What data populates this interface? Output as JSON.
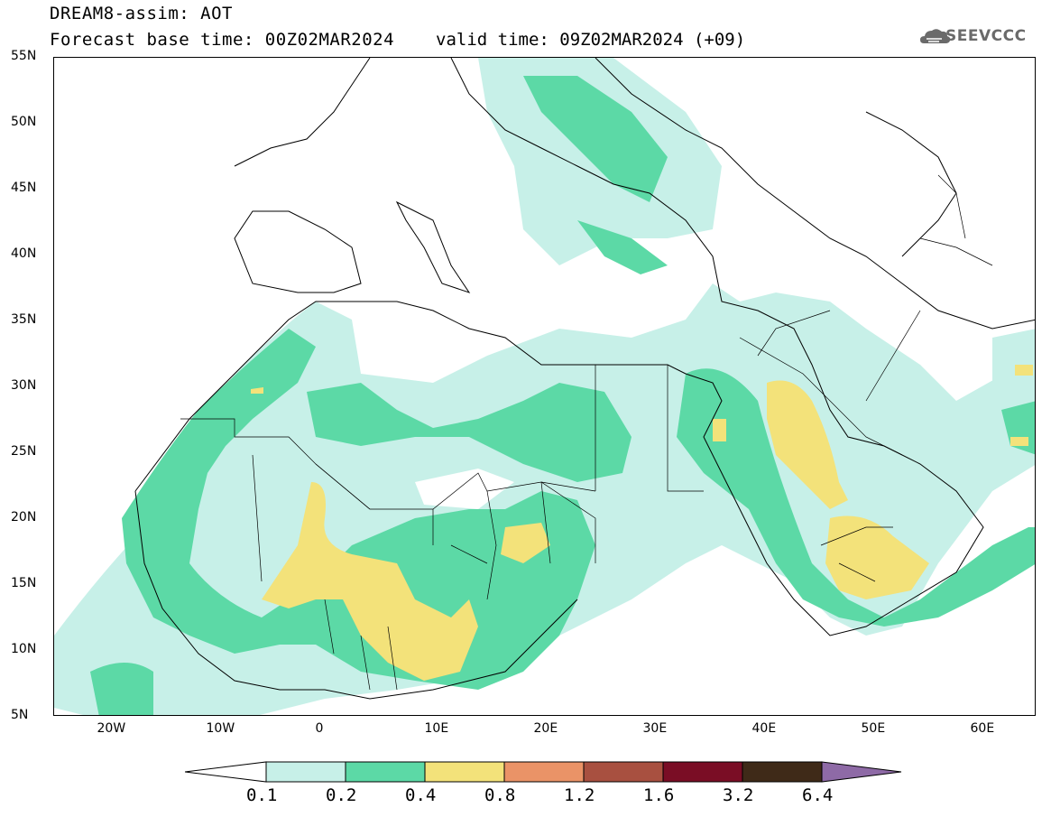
{
  "header": {
    "line1": "DREAM8-assim: AOT",
    "line2": "Forecast base time: 00Z02MAR2024",
    "valid": "valid time: 09Z02MAR2024 (+09)"
  },
  "logo": {
    "text": "SEEVCCC",
    "icon": "cloud-icon",
    "color": "#6a6a6a"
  },
  "map": {
    "extent": {
      "lon": [
        -25,
        65
      ],
      "lat": [
        5,
        55
      ]
    },
    "lat_ticks": [
      "55N",
      "50N",
      "45N",
      "40N",
      "35N",
      "30N",
      "25N",
      "20N",
      "15N",
      "10N",
      "5N"
    ],
    "lon_ticks": [
      "20W",
      "10W",
      "0",
      "10E",
      "20E",
      "30E",
      "40E",
      "50E",
      "60E"
    ]
  },
  "legend": {
    "levels": [
      "0.1",
      "0.2",
      "0.4",
      "0.8",
      "1.2",
      "1.6",
      "3.2",
      "6.4"
    ],
    "colors": [
      "#ffffff",
      "#c7f0e8",
      "#5cd9a6",
      "#f3e27a",
      "#ea9367",
      "#a85040",
      "#7a0d25",
      "#3f2a18",
      "#8e6aa6"
    ]
  }
}
